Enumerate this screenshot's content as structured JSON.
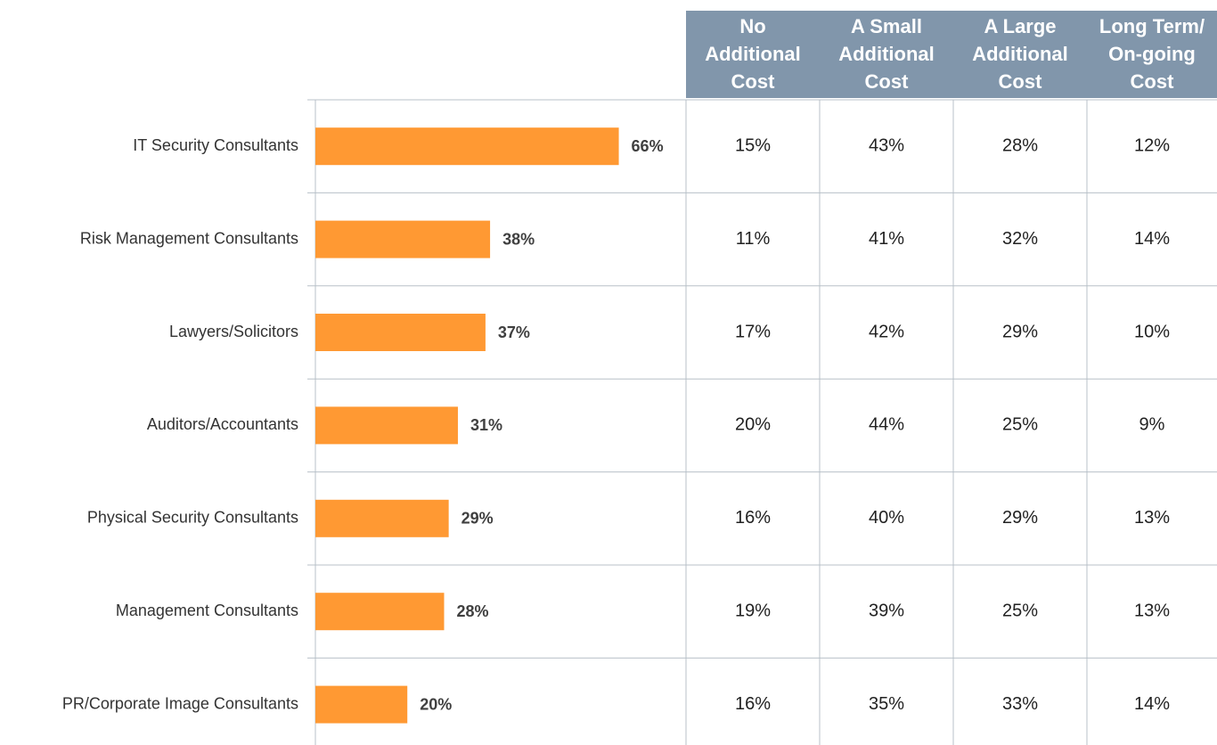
{
  "chart_data": {
    "type": "bar",
    "orientation": "horizontal",
    "categories": [
      "IT Security Consultants",
      "Risk Management Consultants",
      "Lawyers/Solicitors",
      "Auditors/Accountants",
      "Physical Security Consultants",
      "Management Consultants",
      "PR/Corporate Image Consultants"
    ],
    "values": [
      66,
      38,
      37,
      31,
      29,
      28,
      20
    ],
    "value_labels": [
      "66%",
      "38%",
      "37%",
      "31%",
      "29%",
      "28%",
      "20%"
    ],
    "color": "#ff9933"
  },
  "table": {
    "columns": [
      [
        "No",
        "Additional",
        "Cost"
      ],
      [
        "A Small",
        "Additional",
        "Cost"
      ],
      [
        "A Large",
        "Additional",
        "Cost"
      ],
      [
        "Long Term/",
        "On-going",
        "Cost"
      ]
    ],
    "rows": [
      [
        "15%",
        "43%",
        "28%",
        "12%"
      ],
      [
        "11%",
        "41%",
        "32%",
        "14%"
      ],
      [
        "17%",
        "42%",
        "29%",
        "10%"
      ],
      [
        "20%",
        "44%",
        "25%",
        "9%"
      ],
      [
        "16%",
        "40%",
        "29%",
        "13%"
      ],
      [
        "19%",
        "39%",
        "25%",
        "13%"
      ],
      [
        "16%",
        "35%",
        "33%",
        "14%"
      ]
    ]
  }
}
